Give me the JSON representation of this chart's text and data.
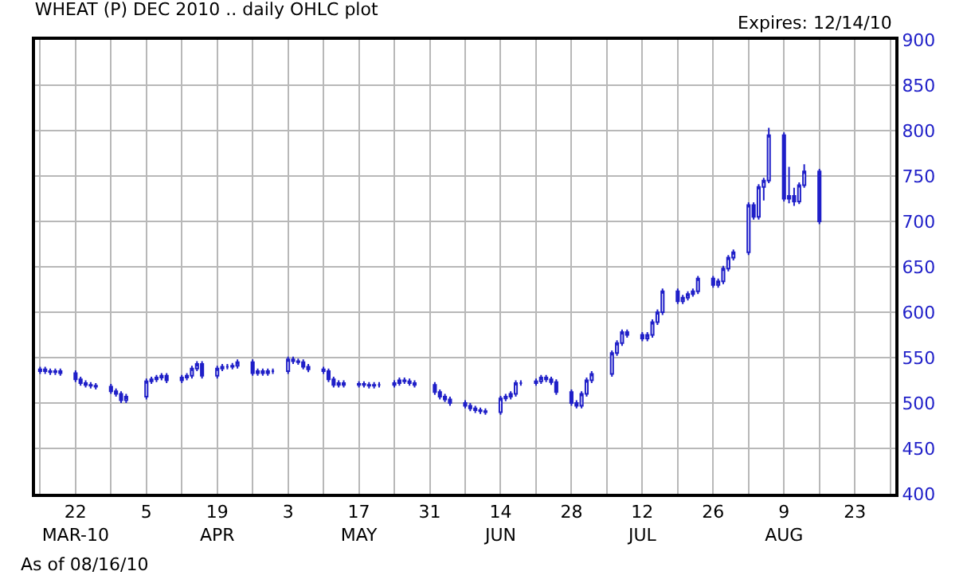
{
  "chart_data": {
    "type": "candlestick",
    "title": "WHEAT (P) DEC 2010 .. daily OHLC plot",
    "annotations": [
      "Expires: 12/14/10",
      "As of 08/16/10"
    ],
    "color": "#1f1fc8",
    "x": [
      "2010-03-15",
      "2010-03-16",
      "2010-03-17",
      "2010-03-18",
      "2010-03-19",
      "2010-03-22",
      "2010-03-23",
      "2010-03-24",
      "2010-03-25",
      "2010-03-26",
      "2010-03-29",
      "2010-03-30",
      "2010-03-31",
      "2010-04-01",
      "2010-04-05",
      "2010-04-06",
      "2010-04-07",
      "2010-04-08",
      "2010-04-09",
      "2010-04-12",
      "2010-04-13",
      "2010-04-14",
      "2010-04-15",
      "2010-04-16",
      "2010-04-19",
      "2010-04-20",
      "2010-04-21",
      "2010-04-22",
      "2010-04-23",
      "2010-04-26",
      "2010-04-27",
      "2010-04-28",
      "2010-04-29",
      "2010-04-30",
      "2010-05-03",
      "2010-05-04",
      "2010-05-05",
      "2010-05-06",
      "2010-05-07",
      "2010-05-10",
      "2010-05-11",
      "2010-05-12",
      "2010-05-13",
      "2010-05-14",
      "2010-05-17",
      "2010-05-18",
      "2010-05-19",
      "2010-05-20",
      "2010-05-21",
      "2010-05-24",
      "2010-05-25",
      "2010-05-26",
      "2010-05-27",
      "2010-05-28",
      "2010-06-01",
      "2010-06-02",
      "2010-06-03",
      "2010-06-04",
      "2010-06-07",
      "2010-06-08",
      "2010-06-09",
      "2010-06-10",
      "2010-06-11",
      "2010-06-14",
      "2010-06-15",
      "2010-06-16",
      "2010-06-17",
      "2010-06-18",
      "2010-06-21",
      "2010-06-22",
      "2010-06-23",
      "2010-06-24",
      "2010-06-25",
      "2010-06-28",
      "2010-06-29",
      "2010-06-30",
      "2010-07-01",
      "2010-07-02",
      "2010-07-06",
      "2010-07-07",
      "2010-07-08",
      "2010-07-09",
      "2010-07-12",
      "2010-07-13",
      "2010-07-14",
      "2010-07-15",
      "2010-07-16",
      "2010-07-19",
      "2010-07-20",
      "2010-07-21",
      "2010-07-22",
      "2010-07-23",
      "2010-07-26",
      "2010-07-27",
      "2010-07-28",
      "2010-07-29",
      "2010-07-30",
      "2010-08-02",
      "2010-08-03",
      "2010-08-04",
      "2010-08-05",
      "2010-08-06",
      "2010-08-09",
      "2010-08-10",
      "2010-08-11",
      "2010-08-12",
      "2010-08-13",
      "2010-08-16"
    ],
    "ohlc": [
      [
        535,
        540,
        532,
        537
      ],
      [
        537,
        540,
        532,
        535
      ],
      [
        535,
        538,
        531,
        534
      ],
      [
        534,
        538,
        531,
        535
      ],
      [
        535,
        538,
        530,
        533
      ],
      [
        533,
        536,
        523,
        526
      ],
      [
        526,
        529,
        519,
        522
      ],
      [
        522,
        525,
        517,
        520
      ],
      [
        520,
        523,
        516,
        519
      ],
      [
        519,
        522,
        515,
        518
      ],
      [
        518,
        521,
        510,
        513
      ],
      [
        513,
        516,
        507,
        510
      ],
      [
        510,
        513,
        500,
        503
      ],
      [
        503,
        510,
        500,
        507
      ],
      [
        507,
        527,
        504,
        524
      ],
      [
        524,
        529,
        521,
        526
      ],
      [
        526,
        531,
        523,
        528
      ],
      [
        528,
        533,
        525,
        530
      ],
      [
        530,
        533,
        522,
        525
      ],
      [
        525,
        531,
        522,
        528
      ],
      [
        528,
        533,
        525,
        530
      ],
      [
        530,
        541,
        527,
        538
      ],
      [
        538,
        546,
        535,
        543
      ],
      [
        543,
        546,
        527,
        530
      ],
      [
        530,
        541,
        527,
        538
      ],
      [
        538,
        543,
        535,
        540
      ],
      [
        540,
        543,
        537,
        540
      ],
      [
        540,
        544,
        537,
        541
      ],
      [
        541,
        548,
        538,
        545
      ],
      [
        545,
        548,
        530,
        533
      ],
      [
        533,
        538,
        530,
        535
      ],
      [
        535,
        538,
        530,
        533
      ],
      [
        533,
        538,
        530,
        535
      ],
      [
        535,
        538,
        532,
        535
      ],
      [
        535,
        551,
        532,
        548
      ],
      [
        548,
        551,
        543,
        546
      ],
      [
        546,
        549,
        542,
        545
      ],
      [
        545,
        548,
        537,
        540
      ],
      [
        540,
        543,
        534,
        537
      ],
      [
        537,
        540,
        532,
        535
      ],
      [
        535,
        538,
        523,
        526
      ],
      [
        526,
        529,
        517,
        520
      ],
      [
        520,
        525,
        517,
        522
      ],
      [
        522,
        525,
        517,
        520
      ],
      [
        520,
        524,
        517,
        521
      ],
      [
        521,
        524,
        517,
        520
      ],
      [
        520,
        523,
        516,
        519
      ],
      [
        519,
        523,
        516,
        520
      ],
      [
        520,
        523,
        517,
        520
      ],
      [
        520,
        525,
        517,
        522
      ],
      [
        522,
        528,
        519,
        525
      ],
      [
        525,
        528,
        521,
        524
      ],
      [
        524,
        527,
        519,
        522
      ],
      [
        522,
        525,
        517,
        520
      ],
      [
        520,
        523,
        509,
        512
      ],
      [
        512,
        515,
        504,
        507
      ],
      [
        507,
        510,
        501,
        504
      ],
      [
        504,
        507,
        497,
        500
      ],
      [
        500,
        503,
        494,
        497
      ],
      [
        497,
        500,
        491,
        494
      ],
      [
        494,
        497,
        489,
        492
      ],
      [
        492,
        495,
        488,
        491
      ],
      [
        491,
        494,
        487,
        490
      ],
      [
        490,
        508,
        487,
        505
      ],
      [
        505,
        510,
        502,
        507
      ],
      [
        507,
        513,
        504,
        510
      ],
      [
        510,
        525,
        507,
        522
      ],
      [
        522,
        525,
        519,
        522
      ],
      [
        522,
        527,
        519,
        524
      ],
      [
        524,
        531,
        521,
        528
      ],
      [
        528,
        531,
        523,
        526
      ],
      [
        526,
        529,
        520,
        523
      ],
      [
        523,
        526,
        509,
        512
      ],
      [
        512,
        515,
        497,
        500
      ],
      [
        500,
        503,
        494,
        497
      ],
      [
        497,
        513,
        494,
        510
      ],
      [
        510,
        528,
        507,
        525
      ],
      [
        525,
        535,
        522,
        532
      ],
      [
        532,
        558,
        529,
        555
      ],
      [
        555,
        569,
        552,
        566
      ],
      [
        566,
        581,
        563,
        578
      ],
      [
        578,
        581,
        572,
        575
      ],
      [
        575,
        578,
        568,
        571
      ],
      [
        571,
        578,
        568,
        575
      ],
      [
        575,
        592,
        572,
        589
      ],
      [
        589,
        603,
        586,
        600
      ],
      [
        600,
        626,
        597,
        623
      ],
      [
        623,
        626,
        609,
        612
      ],
      [
        612,
        619,
        609,
        616
      ],
      [
        616,
        623,
        613,
        620
      ],
      [
        620,
        626,
        617,
        623
      ],
      [
        623,
        640,
        620,
        637
      ],
      [
        637,
        640,
        627,
        630
      ],
      [
        630,
        637,
        627,
        634
      ],
      [
        634,
        651,
        631,
        648
      ],
      [
        648,
        663,
        645,
        660
      ],
      [
        660,
        669,
        657,
        666
      ],
      [
        666,
        721,
        663,
        718
      ],
      [
        718,
        721,
        702,
        705
      ],
      [
        705,
        741,
        702,
        738
      ],
      [
        738,
        748,
        723,
        745
      ],
      [
        745,
        803,
        742,
        795
      ],
      [
        795,
        798,
        722,
        725
      ],
      [
        725,
        760,
        720,
        728
      ],
      [
        728,
        737,
        717,
        722
      ],
      [
        722,
        743,
        719,
        740
      ],
      [
        740,
        763,
        737,
        755
      ],
      [
        755,
        758,
        697,
        700
      ]
    ],
    "xlim": [
      "2010-03-14",
      "2010-08-31"
    ],
    "xticks": [
      {
        "value": "2010-03-15",
        "label": null
      },
      {
        "value": "2010-03-22",
        "label": "22\nMAR-10"
      },
      {
        "value": "2010-03-29",
        "label": null
      },
      {
        "value": "2010-04-05",
        "label": "5"
      },
      {
        "value": "2010-04-12",
        "label": null
      },
      {
        "value": "2010-04-19",
        "label": "19\nAPR"
      },
      {
        "value": "2010-04-26",
        "label": null
      },
      {
        "value": "2010-05-03",
        "label": "3"
      },
      {
        "value": "2010-05-10",
        "label": null
      },
      {
        "value": "2010-05-17",
        "label": "17\nMAY"
      },
      {
        "value": "2010-05-24",
        "label": null
      },
      {
        "value": "2010-05-31",
        "label": "31"
      },
      {
        "value": "2010-06-07",
        "label": null
      },
      {
        "value": "2010-06-14",
        "label": "14\nJUN"
      },
      {
        "value": "2010-06-21",
        "label": null
      },
      {
        "value": "2010-06-28",
        "label": "28"
      },
      {
        "value": "2010-07-05",
        "label": null
      },
      {
        "value": "2010-07-12",
        "label": "12\nJUL"
      },
      {
        "value": "2010-07-19",
        "label": null
      },
      {
        "value": "2010-07-26",
        "label": "26"
      },
      {
        "value": "2010-08-02",
        "label": null
      },
      {
        "value": "2010-08-09",
        "label": "9\nAUG"
      },
      {
        "value": "2010-08-16",
        "label": null
      },
      {
        "value": "2010-08-23",
        "label": "23"
      },
      {
        "value": "2010-08-30",
        "label": null
      }
    ],
    "ylim": [
      400,
      900
    ],
    "yticks": [
      400,
      450,
      500,
      550,
      600,
      650,
      700,
      750,
      800,
      850,
      900
    ],
    "grid": true
  }
}
